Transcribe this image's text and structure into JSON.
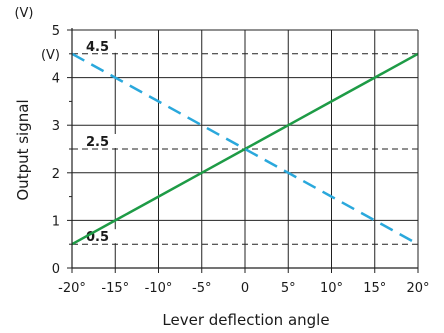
{
  "chart_data": {
    "type": "line",
    "xlabel": "Lever deflection angle",
    "ylabel": "Output signal",
    "y_unit": "(V)",
    "xlim": [
      -20,
      20
    ],
    "ylim": [
      0,
      5
    ],
    "x_ticks": [
      "-20°",
      "-15°",
      "-10°",
      "-5°",
      "0",
      "5°",
      "10°",
      "15°",
      "20°"
    ],
    "y_ticks": [
      "0",
      "1",
      "2",
      "3",
      "4",
      "5"
    ],
    "grid": true,
    "series": [
      {
        "style": "solid",
        "color": "#1e9b46",
        "x": [
          -20,
          -15,
          -10,
          -5,
          0,
          5,
          10,
          15,
          20
        ],
        "y": [
          0.5,
          1,
          1.5,
          2,
          2.5,
          3,
          3.5,
          4,
          4.5
        ]
      },
      {
        "style": "dashed",
        "color": "#2aa8dc",
        "x": [
          -20,
          -15,
          -10,
          -5,
          0,
          5,
          10,
          15,
          20
        ],
        "y": [
          4.5,
          4,
          3.5,
          3,
          2.5,
          2,
          1.5,
          1,
          0.5
        ]
      }
    ],
    "reference_lines": [
      {
        "y": 4.5,
        "label": "4.5",
        "unit": "(V)"
      },
      {
        "y": 2.5,
        "label": "2.5"
      },
      {
        "y": 0.5,
        "label": "0.5"
      }
    ]
  }
}
